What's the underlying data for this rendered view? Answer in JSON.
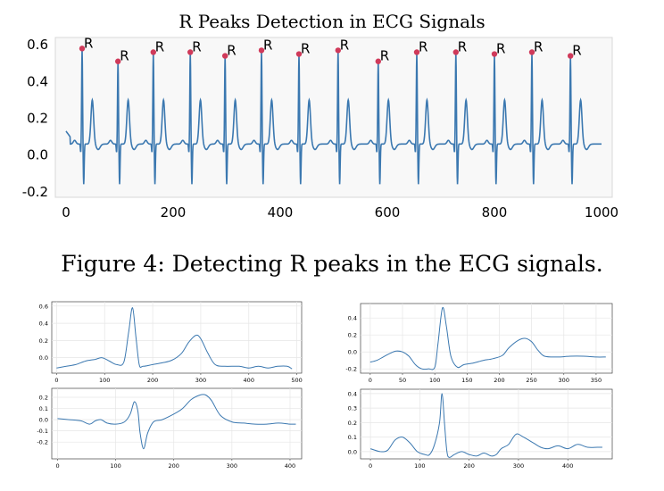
{
  "figure_caption": "Figure 4: Detecting R peaks in the ECG signals.",
  "colors": {
    "line": "#3b78b0",
    "marker": "#d03a5a",
    "grid": "#e6e6e6"
  },
  "chart_data": [
    {
      "type": "line",
      "title": "R Peaks Detection in ECG Signals",
      "xlim": [
        -20,
        1020
      ],
      "ylim": [
        -0.23,
        0.64
      ],
      "xticks": [
        0,
        200,
        400,
        600,
        800,
        1000
      ],
      "yticks": [
        -0.2,
        0.0,
        0.2,
        0.4,
        0.6
      ],
      "grid": false,
      "series": [
        {
          "values_description": "",
          "beats": [
            {
              "x": 30,
              "peak": 0.58
            },
            {
              "x": 97,
              "peak": 0.51
            },
            {
              "x": 163,
              "peak": 0.56
            },
            {
              "x": 232,
              "peak": 0.56
            },
            {
              "x": 297,
              "peak": 0.54
            },
            {
              "x": 365,
              "peak": 0.57
            },
            {
              "x": 435,
              "peak": 0.55
            },
            {
              "x": 508,
              "peak": 0.57
            },
            {
              "x": 583,
              "peak": 0.51
            },
            {
              "x": 655,
              "peak": 0.56
            },
            {
              "x": 728,
              "peak": 0.56
            },
            {
              "x": 800,
              "peak": 0.55
            },
            {
              "x": 870,
              "peak": 0.56
            },
            {
              "x": 942,
              "peak": 0.54
            }
          ],
          "x_start": 0,
          "x_end": 1000,
          "baseline": 0.06
        }
      ],
      "annotations": {
        "label": "R",
        "count": 14
      }
    },
    {
      "type": "line",
      "xlim": [
        -10,
        510
      ],
      "ylim": [
        -0.18,
        0.65
      ],
      "xticks": [
        0,
        100,
        200,
        300,
        400,
        500
      ],
      "yticks": [
        -0.0,
        0.2,
        0.4,
        0.6
      ],
      "ytick_labels": [
        "0.0",
        "0.2",
        "0.4",
        "0.6"
      ],
      "grid": true,
      "points": [
        [
          0,
          -0.12
        ],
        [
          20,
          -0.1
        ],
        [
          40,
          -0.08
        ],
        [
          60,
          -0.04
        ],
        [
          80,
          -0.02
        ],
        [
          95,
          0.0
        ],
        [
          110,
          -0.04
        ],
        [
          125,
          -0.08
        ],
        [
          140,
          -0.05
        ],
        [
          150,
          0.3
        ],
        [
          158,
          0.58
        ],
        [
          165,
          0.25
        ],
        [
          172,
          -0.08
        ],
        [
          180,
          -0.1
        ],
        [
          200,
          -0.08
        ],
        [
          220,
          -0.06
        ],
        [
          240,
          -0.03
        ],
        [
          260,
          0.05
        ],
        [
          275,
          0.18
        ],
        [
          290,
          0.26
        ],
        [
          300,
          0.22
        ],
        [
          315,
          0.05
        ],
        [
          330,
          -0.08
        ],
        [
          350,
          -0.1
        ],
        [
          380,
          -0.1
        ],
        [
          400,
          -0.12
        ],
        [
          420,
          -0.1
        ],
        [
          440,
          -0.12
        ],
        [
          460,
          -0.1
        ],
        [
          480,
          -0.1
        ],
        [
          490,
          -0.13
        ]
      ]
    },
    {
      "type": "line",
      "xlim": [
        -15,
        375
      ],
      "ylim": [
        -0.25,
        0.57
      ],
      "xticks": [
        0,
        50,
        100,
        150,
        200,
        250,
        300,
        350
      ],
      "yticks": [
        -0.2,
        0.0,
        0.2,
        0.4
      ],
      "grid": true,
      "points": [
        [
          0,
          -0.12
        ],
        [
          10,
          -0.1
        ],
        [
          20,
          -0.06
        ],
        [
          30,
          -0.02
        ],
        [
          40,
          0.01
        ],
        [
          50,
          0.0
        ],
        [
          60,
          -0.05
        ],
        [
          70,
          -0.15
        ],
        [
          80,
          -0.2
        ],
        [
          90,
          -0.2
        ],
        [
          100,
          -0.18
        ],
        [
          105,
          0.1
        ],
        [
          112,
          0.52
        ],
        [
          118,
          0.3
        ],
        [
          125,
          -0.05
        ],
        [
          135,
          -0.18
        ],
        [
          145,
          -0.15
        ],
        [
          160,
          -0.13
        ],
        [
          175,
          -0.1
        ],
        [
          190,
          -0.08
        ],
        [
          205,
          -0.04
        ],
        [
          215,
          0.05
        ],
        [
          230,
          0.14
        ],
        [
          240,
          0.16
        ],
        [
          250,
          0.12
        ],
        [
          260,
          0.02
        ],
        [
          270,
          -0.05
        ],
        [
          290,
          -0.06
        ],
        [
          310,
          -0.05
        ],
        [
          330,
          -0.05
        ],
        [
          350,
          -0.06
        ],
        [
          365,
          -0.06
        ]
      ]
    },
    {
      "type": "line",
      "xlim": [
        -10,
        420
      ],
      "ylim": [
        -0.35,
        0.28
      ],
      "xticks": [
        0,
        100,
        200,
        300,
        400
      ],
      "yticks": [
        -0.2,
        -0.1,
        0.0,
        0.1,
        0.2
      ],
      "grid": true,
      "points": [
        [
          0,
          0.01
        ],
        [
          20,
          0.0
        ],
        [
          40,
          -0.01
        ],
        [
          55,
          -0.04
        ],
        [
          65,
          -0.01
        ],
        [
          75,
          -0.0
        ],
        [
          85,
          -0.03
        ],
        [
          100,
          -0.04
        ],
        [
          115,
          -0.02
        ],
        [
          125,
          0.05
        ],
        [
          132,
          0.16
        ],
        [
          138,
          0.08
        ],
        [
          142,
          -0.12
        ],
        [
          148,
          -0.26
        ],
        [
          155,
          -0.12
        ],
        [
          165,
          -0.02
        ],
        [
          180,
          0.0
        ],
        [
          200,
          0.05
        ],
        [
          215,
          0.1
        ],
        [
          230,
          0.18
        ],
        [
          245,
          0.22
        ],
        [
          255,
          0.22
        ],
        [
          265,
          0.17
        ],
        [
          280,
          0.04
        ],
        [
          300,
          -0.02
        ],
        [
          320,
          -0.03
        ],
        [
          340,
          -0.04
        ],
        [
          360,
          -0.04
        ],
        [
          380,
          -0.03
        ],
        [
          400,
          -0.04
        ],
        [
          410,
          -0.04
        ]
      ]
    },
    {
      "type": "line",
      "xlim": [
        -20,
        490
      ],
      "ylim": [
        -0.05,
        0.43
      ],
      "xticks": [
        0,
        100,
        200,
        300,
        400
      ],
      "yticks": [
        0.0,
        0.1,
        0.2,
        0.3,
        0.4
      ],
      "grid": true,
      "points": [
        [
          0,
          0.02
        ],
        [
          20,
          0.0
        ],
        [
          35,
          0.01
        ],
        [
          50,
          0.08
        ],
        [
          65,
          0.1
        ],
        [
          80,
          0.06
        ],
        [
          95,
          0.0
        ],
        [
          110,
          -0.02
        ],
        [
          120,
          -0.02
        ],
        [
          130,
          0.05
        ],
        [
          140,
          0.2
        ],
        [
          145,
          0.4
        ],
        [
          150,
          0.2
        ],
        [
          155,
          0.0
        ],
        [
          160,
          -0.04
        ],
        [
          170,
          -0.02
        ],
        [
          185,
          0.0
        ],
        [
          200,
          -0.02
        ],
        [
          215,
          -0.03
        ],
        [
          230,
          -0.01
        ],
        [
          245,
          -0.03
        ],
        [
          255,
          -0.02
        ],
        [
          265,
          0.02
        ],
        [
          280,
          0.05
        ],
        [
          295,
          0.12
        ],
        [
          310,
          0.1
        ],
        [
          330,
          0.06
        ],
        [
          345,
          0.03
        ],
        [
          360,
          0.02
        ],
        [
          380,
          0.04
        ],
        [
          400,
          0.02
        ],
        [
          420,
          0.05
        ],
        [
          440,
          0.03
        ],
        [
          460,
          0.03
        ],
        [
          470,
          0.03
        ]
      ]
    }
  ]
}
